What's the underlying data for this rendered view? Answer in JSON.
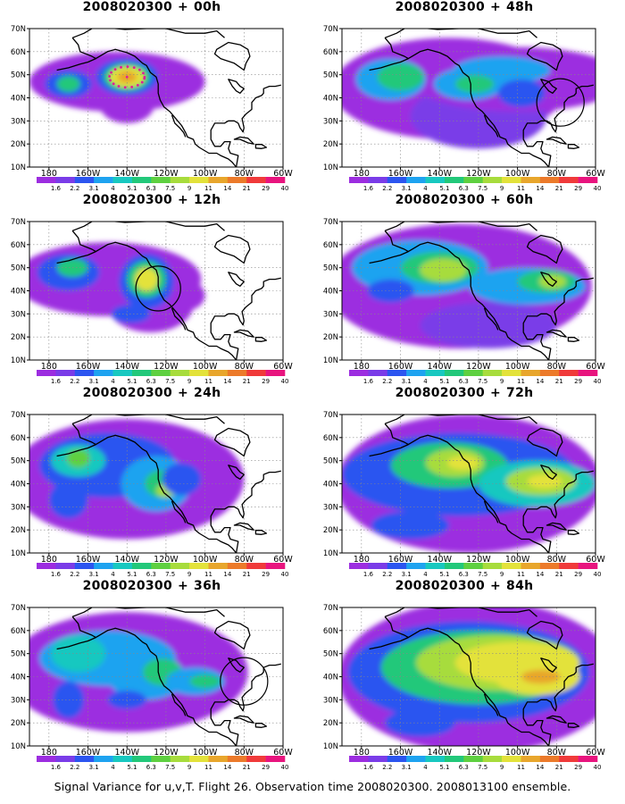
{
  "footer": "Signal Variance for u,v,T. Flight 26. Observation time 2008020300. 2008013100 ensemble.",
  "colorbar": {
    "labels": [
      "1.6",
      "2.2",
      "3.1",
      "4",
      "5.1",
      "6.3",
      "7.5",
      "9",
      "11",
      "14",
      "21",
      "29",
      "40"
    ],
    "colors": [
      "#ffffff",
      "#9c2de0",
      "#7a3ce8",
      "#2c55f0",
      "#1ea3f0",
      "#18c8c0",
      "#22c87a",
      "#5ed040",
      "#a7dc3c",
      "#e3e23a",
      "#e8a62c",
      "#ec7a2a",
      "#f03a3a",
      "#e8147e"
    ]
  },
  "axes": {
    "lon_labels": [
      "180",
      "160W",
      "140W",
      "120W",
      "100W",
      "80W",
      "60W"
    ],
    "lat_labels": [
      "10N",
      "20N",
      "30N",
      "40N",
      "50N",
      "60N",
      "70N"
    ],
    "lon_range": [
      "180",
      "60W"
    ],
    "lat_range": [
      "10N",
      "70N"
    ]
  },
  "panels": [
    {
      "id": "p00",
      "date": "2008020300",
      "sep": "+",
      "lead": "00h",
      "blobs": [
        {
          "cx": -145,
          "cy": 47,
          "rx": 45,
          "ry": 13,
          "level": 1
        },
        {
          "cx": -133,
          "cy": 49,
          "rx": 17,
          "ry": 9,
          "level": 1
        },
        {
          "cx": -140,
          "cy": 37,
          "rx": 14,
          "ry": 8,
          "level": 1
        },
        {
          "cx": -170,
          "cy": 46,
          "rx": 12,
          "ry": 6,
          "level": 3
        },
        {
          "cx": -170,
          "cy": 46,
          "rx": 6,
          "ry": 3.5,
          "level": 6
        },
        {
          "cx": -140,
          "cy": 49,
          "rx": 16,
          "ry": 8,
          "level": 3
        },
        {
          "cx": -140,
          "cy": 49,
          "rx": 12,
          "ry": 6,
          "level": 6
        },
        {
          "cx": -140,
          "cy": 49,
          "rx": 9,
          "ry": 4.5,
          "level": 9
        },
        {
          "cx": -140,
          "cy": 49,
          "rx": 5,
          "ry": 2.5,
          "level": 10
        }
      ],
      "circle": null,
      "dots": true
    },
    {
      "id": "p48",
      "date": "2008020300",
      "sep": "+",
      "lead": "48h",
      "blobs": [
        {
          "cx": -135,
          "cy": 44,
          "rx": 60,
          "ry": 22,
          "level": 1
        },
        {
          "cx": -120,
          "cy": 32,
          "rx": 35,
          "ry": 14,
          "level": 2
        },
        {
          "cx": -100,
          "cy": 48,
          "rx": 55,
          "ry": 14,
          "level": 1
        },
        {
          "cx": -165,
          "cy": 48,
          "rx": 18,
          "ry": 9,
          "level": 4
        },
        {
          "cx": -160,
          "cy": 49,
          "rx": 12,
          "ry": 6,
          "level": 6
        },
        {
          "cx": -125,
          "cy": 46,
          "rx": 18,
          "ry": 7,
          "level": 4
        },
        {
          "cx": -108,
          "cy": 52,
          "rx": 25,
          "ry": 6,
          "level": 4
        },
        {
          "cx": -98,
          "cy": 42,
          "rx": 12,
          "ry": 6,
          "level": 3
        },
        {
          "cx": -122,
          "cy": 46,
          "rx": 10,
          "ry": 4,
          "level": 6
        }
      ],
      "circle": {
        "lon": -78,
        "lat": 38,
        "r": 9
      },
      "dots": false
    },
    {
      "id": "p12",
      "date": "2008020300",
      "sep": "+",
      "lead": "12h",
      "blobs": [
        {
          "cx": -150,
          "cy": 45,
          "rx": 48,
          "ry": 16,
          "level": 1
        },
        {
          "cx": -128,
          "cy": 34,
          "rx": 22,
          "ry": 12,
          "level": 1
        },
        {
          "cx": -112,
          "cy": 38,
          "rx": 12,
          "ry": 7,
          "level": 1
        },
        {
          "cx": -170,
          "cy": 48,
          "rx": 16,
          "ry": 8,
          "level": 3
        },
        {
          "cx": -168,
          "cy": 50,
          "rx": 8,
          "ry": 4,
          "level": 6
        },
        {
          "cx": -130,
          "cy": 44,
          "rx": 14,
          "ry": 12,
          "level": 3
        },
        {
          "cx": -130,
          "cy": 45,
          "rx": 10,
          "ry": 8,
          "level": 6
        },
        {
          "cx": -130,
          "cy": 45,
          "rx": 6,
          "ry": 5,
          "level": 9
        },
        {
          "cx": -138,
          "cy": 30,
          "rx": 10,
          "ry": 4,
          "level": 3
        }
      ],
      "circle": {
        "lon": -124,
        "lat": 41,
        "r": 8.5
      },
      "dots": false
    },
    {
      "id": "p60",
      "date": "2008020300",
      "sep": "+",
      "lead": "60h",
      "blobs": [
        {
          "cx": -130,
          "cy": 42,
          "rx": 68,
          "ry": 27,
          "level": 1
        },
        {
          "cx": -115,
          "cy": 25,
          "rx": 35,
          "ry": 10,
          "level": 2
        },
        {
          "cx": -150,
          "cy": 50,
          "rx": 35,
          "ry": 12,
          "level": 4
        },
        {
          "cx": -140,
          "cy": 50,
          "rx": 20,
          "ry": 7,
          "level": 6
        },
        {
          "cx": -138,
          "cy": 49,
          "rx": 12,
          "ry": 5,
          "level": 8
        },
        {
          "cx": -95,
          "cy": 42,
          "rx": 30,
          "ry": 8,
          "level": 4
        },
        {
          "cx": -85,
          "cy": 44,
          "rx": 15,
          "ry": 5,
          "level": 6
        },
        {
          "cx": -82,
          "cy": 44,
          "rx": 7,
          "ry": 3,
          "level": 8
        },
        {
          "cx": -165,
          "cy": 40,
          "rx": 12,
          "ry": 5,
          "level": 3
        }
      ],
      "circle": null,
      "dots": false
    },
    {
      "id": "p24",
      "date": "2008020300",
      "sep": "+",
      "lead": "24h",
      "blobs": [
        {
          "cx": -140,
          "cy": 42,
          "rx": 60,
          "ry": 26,
          "level": 1
        },
        {
          "cx": -150,
          "cy": 48,
          "rx": 35,
          "ry": 14,
          "level": 3
        },
        {
          "cx": -165,
          "cy": 50,
          "rx": 14,
          "ry": 7,
          "level": 5
        },
        {
          "cx": -165,
          "cy": 51,
          "rx": 6,
          "ry": 4,
          "level": 7
        },
        {
          "cx": -125,
          "cy": 40,
          "rx": 18,
          "ry": 12,
          "level": 4
        },
        {
          "cx": -122,
          "cy": 40,
          "rx": 9,
          "ry": 6,
          "level": 6
        },
        {
          "cx": -120,
          "cy": 37,
          "rx": 5,
          "ry": 3,
          "level": 8
        },
        {
          "cx": -170,
          "cy": 33,
          "rx": 10,
          "ry": 8,
          "level": 3
        },
        {
          "cx": -112,
          "cy": 42,
          "rx": 10,
          "ry": 7,
          "level": 3
        }
      ],
      "circle": null,
      "dots": false
    },
    {
      "id": "p72",
      "date": "2008020300",
      "sep": "+",
      "lead": "72h",
      "blobs": [
        {
          "cx": -125,
          "cy": 40,
          "rx": 68,
          "ry": 30,
          "level": 1
        },
        {
          "cx": -130,
          "cy": 44,
          "rx": 60,
          "ry": 18,
          "level": 3
        },
        {
          "cx": -135,
          "cy": 48,
          "rx": 30,
          "ry": 10,
          "level": 6
        },
        {
          "cx": -132,
          "cy": 49,
          "rx": 15,
          "ry": 6,
          "level": 8
        },
        {
          "cx": -128,
          "cy": 49,
          "rx": 8,
          "ry": 3,
          "level": 9
        },
        {
          "cx": -90,
          "cy": 40,
          "rx": 30,
          "ry": 10,
          "level": 5
        },
        {
          "cx": -88,
          "cy": 41,
          "rx": 18,
          "ry": 6,
          "level": 8
        },
        {
          "cx": -86,
          "cy": 41,
          "rx": 9,
          "ry": 3,
          "level": 9
        },
        {
          "cx": -155,
          "cy": 22,
          "rx": 20,
          "ry": 6,
          "level": 3
        }
      ],
      "circle": null,
      "dots": false
    },
    {
      "id": "p36",
      "date": "2008020300",
      "sep": "+",
      "lead": "36h",
      "blobs": [
        {
          "cx": -140,
          "cy": 42,
          "rx": 62,
          "ry": 26,
          "level": 1
        },
        {
          "cx": -150,
          "cy": 48,
          "rx": 35,
          "ry": 12,
          "level": 4
        },
        {
          "cx": -165,
          "cy": 50,
          "rx": 14,
          "ry": 8,
          "level": 5
        },
        {
          "cx": -130,
          "cy": 40,
          "rx": 20,
          "ry": 10,
          "level": 4
        },
        {
          "cx": -122,
          "cy": 42,
          "rx": 10,
          "ry": 6,
          "level": 6
        },
        {
          "cx": -105,
          "cy": 38,
          "rx": 15,
          "ry": 6,
          "level": 4
        },
        {
          "cx": -100,
          "cy": 38,
          "rx": 8,
          "ry": 3,
          "level": 6
        },
        {
          "cx": -170,
          "cy": 30,
          "rx": 8,
          "ry": 8,
          "level": 3
        },
        {
          "cx": -140,
          "cy": 30,
          "rx": 10,
          "ry": 4,
          "level": 3
        }
      ],
      "circle": {
        "lon": -80,
        "lat": 38,
        "r": 9
      },
      "dots": false
    },
    {
      "id": "p84",
      "date": "2008020300",
      "sep": "+",
      "lead": "84h",
      "blobs": [
        {
          "cx": -120,
          "cy": 40,
          "rx": 72,
          "ry": 33,
          "level": 1
        },
        {
          "cx": -125,
          "cy": 42,
          "rx": 62,
          "ry": 22,
          "level": 3
        },
        {
          "cx": -120,
          "cy": 44,
          "rx": 50,
          "ry": 16,
          "level": 6
        },
        {
          "cx": -110,
          "cy": 46,
          "rx": 42,
          "ry": 12,
          "level": 8
        },
        {
          "cx": -100,
          "cy": 46,
          "rx": 32,
          "ry": 9,
          "level": 9
        },
        {
          "cx": -90,
          "cy": 40,
          "rx": 22,
          "ry": 8,
          "level": 9
        },
        {
          "cx": -88,
          "cy": 40,
          "rx": 10,
          "ry": 3,
          "level": 10
        },
        {
          "cx": -150,
          "cy": 20,
          "rx": 18,
          "ry": 6,
          "level": 3
        }
      ],
      "circle": null,
      "dots": false
    }
  ]
}
